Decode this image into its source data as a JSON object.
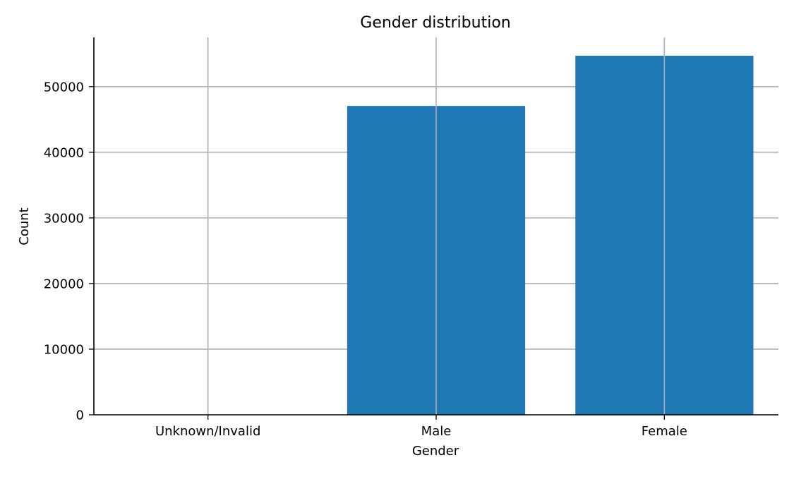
{
  "chart_data": {
    "type": "bar",
    "title": "Gender distribution",
    "xlabel": "Gender",
    "ylabel": "Count",
    "categories": [
      "Unknown/Invalid",
      "Male",
      "Female"
    ],
    "values": [
      3,
      47055,
      54708
    ],
    "ylim": [
      0,
      57500
    ],
    "yticks": [
      0,
      10000,
      20000,
      30000,
      40000,
      50000
    ],
    "ytick_labels": [
      "0",
      "10000",
      "20000",
      "30000",
      "40000",
      "50000"
    ],
    "grid": true,
    "bar_color": "#1f77b4",
    "grid_color": "#b0b0b0"
  }
}
